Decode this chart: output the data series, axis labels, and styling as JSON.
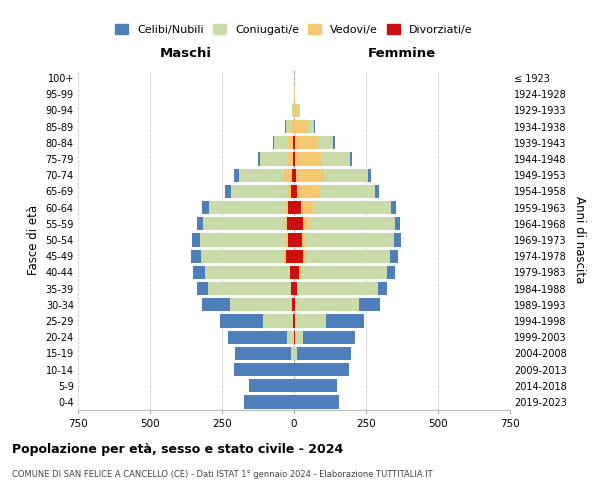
{
  "age_groups": [
    "0-4",
    "5-9",
    "10-14",
    "15-19",
    "20-24",
    "25-29",
    "30-34",
    "35-39",
    "40-44",
    "45-49",
    "50-54",
    "55-59",
    "60-64",
    "65-69",
    "70-74",
    "75-79",
    "80-84",
    "85-89",
    "90-94",
    "95-99",
    "100+"
  ],
  "birth_years": [
    "2019-2023",
    "2014-2018",
    "2009-2013",
    "2004-2008",
    "1999-2003",
    "1994-1998",
    "1989-1993",
    "1984-1988",
    "1979-1983",
    "1974-1978",
    "1969-1973",
    "1964-1968",
    "1959-1963",
    "1954-1958",
    "1949-1953",
    "1944-1948",
    "1939-1943",
    "1934-1938",
    "1929-1933",
    "1924-1928",
    "≤ 1923"
  ],
  "colors": {
    "celibi": "#4d7fba",
    "coniugati": "#c8dba8",
    "vedovi": "#f5c870",
    "divorziati": "#cc1010"
  },
  "maschi": {
    "celibi": [
      175,
      155,
      210,
      195,
      205,
      150,
      98,
      40,
      40,
      35,
      28,
      22,
      25,
      20,
      18,
      8,
      4,
      2,
      0,
      0,
      0
    ],
    "coniugati": [
      0,
      0,
      0,
      10,
      25,
      105,
      215,
      285,
      295,
      290,
      300,
      285,
      265,
      195,
      155,
      95,
      50,
      20,
      5,
      0,
      0
    ],
    "vedovi": [
      0,
      0,
      0,
      0,
      0,
      0,
      0,
      0,
      0,
      5,
      5,
      5,
      10,
      15,
      28,
      18,
      18,
      8,
      2,
      0,
      0
    ],
    "divorziati": [
      0,
      0,
      0,
      0,
      0,
      2,
      8,
      12,
      15,
      28,
      22,
      25,
      20,
      10,
      8,
      5,
      2,
      0,
      0,
      0,
      0
    ]
  },
  "femmine": {
    "nubili": [
      155,
      150,
      190,
      185,
      180,
      130,
      75,
      32,
      28,
      25,
      22,
      18,
      18,
      12,
      10,
      5,
      4,
      2,
      0,
      0,
      0
    ],
    "coniugate": [
      0,
      0,
      0,
      12,
      30,
      110,
      220,
      280,
      300,
      295,
      305,
      295,
      270,
      195,
      155,
      100,
      55,
      25,
      8,
      2,
      0
    ],
    "vedove": [
      0,
      0,
      0,
      0,
      0,
      0,
      0,
      2,
      5,
      10,
      15,
      22,
      42,
      75,
      95,
      90,
      80,
      45,
      12,
      2,
      0
    ],
    "divorziate": [
      0,
      0,
      0,
      0,
      2,
      2,
      5,
      10,
      18,
      30,
      28,
      32,
      25,
      12,
      8,
      5,
      2,
      0,
      0,
      0,
      0
    ]
  },
  "title": "Popolazione per età, sesso e stato civile - 2024",
  "subtitle": "COMUNE DI SAN FELICE A CANCELLO (CE) - Dati ISTAT 1° gennaio 2024 - Elaborazione TUTTITALIA.IT",
  "xlabel_maschi": "Maschi",
  "xlabel_femmine": "Femmine",
  "ylabel": "Fasce di età",
  "ylabel_right": "Anni di nascita",
  "xlim": 750
}
